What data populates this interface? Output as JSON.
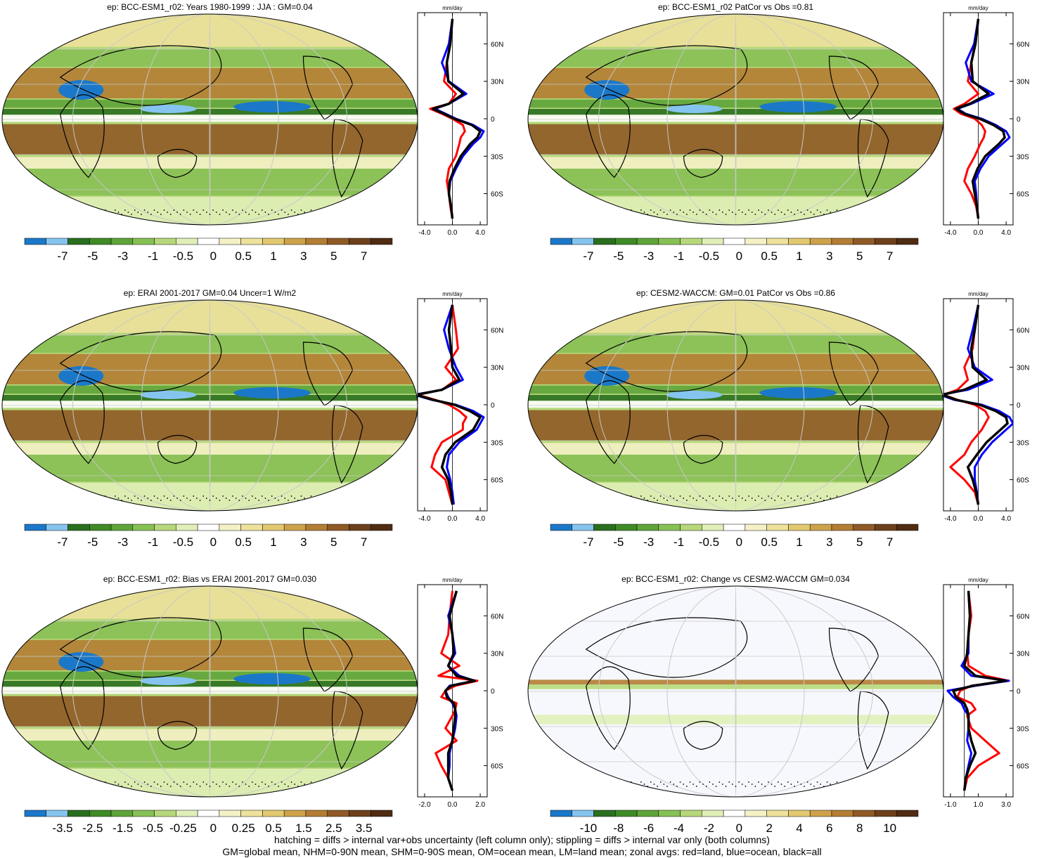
{
  "figure_notes": {
    "line1": "hatching = diffs > internal var+obs uncertainty (left column only); stippling = diffs > internal var only (both columns)",
    "line2": "GM=global mean, NHM=0-90N mean, SHM=0-90S mean, OM=ocean mean, LM=land mean; zonal avgs: red=land, blue=ocean, black=all"
  },
  "colors": {
    "land": "#ff0000",
    "ocean": "#0000ff",
    "all": "#000000",
    "palette": [
      "#1b78c8",
      "#86c4f0",
      "#2a6f1f",
      "#3f8b26",
      "#5ea43a",
      "#87c054",
      "#b6d87a",
      "#e0efb8",
      "#ffffff",
      "#f4f1c6",
      "#ede19b",
      "#e2c870",
      "#cda24a",
      "#b37d33",
      "#8f5a25",
      "#6d401b",
      "#4f2c12"
    ]
  },
  "chart_data": [
    {
      "type": "heatmap",
      "panel": "top-left",
      "title": "ep: BCC-ESM1_r02: Years 1980-1999 : JJA : GM=0.04",
      "colorbar_labels": [
        "-7",
        "-5",
        "-3",
        "-1",
        "-0.5",
        "0",
        "0.5",
        "1",
        "3",
        "5",
        "7"
      ],
      "zonal_mean": {
        "unit": "mm/day",
        "x_ticks": [
          "-4.0",
          "0.0",
          "4.0"
        ],
        "xlim": [
          -5,
          5
        ],
        "y_ticks": [
          "60N",
          "30N",
          "0",
          "30S",
          "60S"
        ],
        "lat": [
          80,
          60,
          45,
          30,
          20,
          12,
          8,
          4,
          0,
          -5,
          -10,
          -15,
          -20,
          -30,
          -40,
          -50,
          -60,
          -70,
          -80
        ],
        "series": [
          {
            "name": "land",
            "values": [
              0.0,
              -0.3,
              -0.8,
              -1.2,
              0.5,
              -0.5,
              -3.2,
              -1.5,
              0.0,
              1.5,
              1.8,
              1.2,
              1.0,
              0.5,
              -0.5,
              -0.8,
              -0.5,
              -0.3,
              0.0
            ]
          },
          {
            "name": "ocean",
            "values": [
              0.0,
              -0.5,
              -1.5,
              -0.5,
              2.0,
              -0.5,
              -2.5,
              -1.0,
              0.5,
              3.0,
              4.5,
              4.0,
              3.0,
              1.5,
              0.5,
              -0.3,
              -0.5,
              -0.2,
              0.0
            ]
          },
          {
            "name": "all",
            "values": [
              0.0,
              -0.3,
              -0.8,
              -0.6,
              1.6,
              -0.5,
              -2.8,
              -1.2,
              0.3,
              2.8,
              4.0,
              3.6,
              2.6,
              1.2,
              0.3,
              -0.4,
              -0.5,
              -0.2,
              0.0
            ]
          }
        ]
      }
    },
    {
      "type": "heatmap",
      "panel": "top-right",
      "title": "ep: BCC-ESM1_r02 PatCor vs Obs =0.81",
      "colorbar_labels": [
        "-7",
        "-5",
        "-3",
        "-1",
        "-0.5",
        "0",
        "0.5",
        "1",
        "3",
        "5",
        "7"
      ],
      "zonal_mean": {
        "unit": "mm/day",
        "x_ticks": [
          "-4.0",
          "0.0",
          "4.0"
        ],
        "xlim": [
          -5,
          5
        ],
        "y_ticks": [
          "60N",
          "30N",
          "0",
          "30S",
          "60S"
        ],
        "lat": [
          80,
          60,
          45,
          30,
          20,
          12,
          8,
          4,
          0,
          -5,
          -10,
          -15,
          -20,
          -30,
          -40,
          -50,
          -60,
          -70,
          -80
        ],
        "series": [
          {
            "name": "land",
            "values": [
              0.0,
              -0.5,
              -1.0,
              -1.5,
              0.0,
              -2.0,
              -3.5,
              -2.5,
              -0.5,
              0.5,
              1.0,
              0.8,
              0.3,
              -0.5,
              -1.5,
              -2.0,
              -1.0,
              -0.3,
              0.0
            ]
          },
          {
            "name": "ocean",
            "values": [
              0.0,
              -0.6,
              -1.8,
              -1.0,
              2.2,
              -1.0,
              -3.0,
              -1.8,
              0.5,
              2.5,
              4.0,
              4.5,
              3.5,
              1.5,
              0.3,
              -0.5,
              -0.3,
              -0.2,
              0.0
            ]
          },
          {
            "name": "all",
            "values": [
              0.0,
              -0.4,
              -1.0,
              -0.8,
              1.5,
              -1.2,
              -3.2,
              -2.0,
              0.2,
              2.2,
              3.6,
              3.8,
              3.0,
              1.0,
              -0.1,
              -0.8,
              -0.5,
              -0.2,
              0.0
            ]
          }
        ]
      }
    },
    {
      "type": "heatmap",
      "panel": "middle-left",
      "title": "ep: ERAI 2001-2017 GM=0.04 Uncer=1 W/m2",
      "colorbar_labels": [
        "-7",
        "-5",
        "-3",
        "-1",
        "-0.5",
        "0",
        "0.5",
        "1",
        "3",
        "5",
        "7"
      ],
      "zonal_mean": {
        "unit": "mm/day",
        "x_ticks": [
          "-4.0",
          "0.0",
          "4.0"
        ],
        "xlim": [
          -5,
          5
        ],
        "y_ticks": [
          "60N",
          "30N",
          "0",
          "30S",
          "60S"
        ],
        "lat": [
          80,
          60,
          45,
          30,
          20,
          12,
          8,
          4,
          0,
          -5,
          -10,
          -15,
          -20,
          -30,
          -40,
          -50,
          -60,
          -70,
          -80
        ],
        "series": [
          {
            "name": "land",
            "values": [
              0.0,
              0.5,
              0.8,
              -1.0,
              0.5,
              -1.5,
              -5.0,
              -2.5,
              -0.5,
              1.0,
              2.0,
              1.5,
              1.5,
              -1.5,
              -2.5,
              -3.0,
              -1.0,
              -0.5,
              0.0
            ]
          },
          {
            "name": "ocean",
            "values": [
              0.0,
              -1.2,
              -0.5,
              0.5,
              1.5,
              -1.5,
              -5.5,
              -3.0,
              0.5,
              3.0,
              4.5,
              4.0,
              3.5,
              1.0,
              -0.5,
              -0.8,
              -0.3,
              0.0,
              0.2
            ]
          },
          {
            "name": "all",
            "values": [
              0.0,
              -0.5,
              -0.2,
              0.0,
              1.0,
              -1.5,
              -5.2,
              -2.8,
              0.3,
              2.5,
              4.0,
              3.5,
              3.0,
              0.4,
              -1.0,
              -1.5,
              -0.6,
              -0.2,
              0.0
            ]
          }
        ]
      }
    },
    {
      "type": "heatmap",
      "panel": "middle-right",
      "title": "ep: CESM2-WACCM: GM=0.01 PatCor vs Obs =0.86",
      "colorbar_labels": [
        "-7",
        "-5",
        "-3",
        "-1",
        "-0.5",
        "0",
        "0.5",
        "1",
        "3",
        "5",
        "7"
      ],
      "zonal_mean": {
        "unit": "mm/day",
        "x_ticks": [
          "-4.0",
          "0.0",
          "4.0"
        ],
        "xlim": [
          -5,
          5
        ],
        "y_ticks": [
          "60N",
          "30N",
          "0",
          "30S",
          "60S"
        ],
        "lat": [
          80,
          60,
          45,
          30,
          20,
          12,
          8,
          4,
          0,
          -5,
          -10,
          -15,
          -20,
          -30,
          -40,
          -50,
          -60,
          -70,
          -80
        ],
        "series": [
          {
            "name": "land",
            "values": [
              0.0,
              -0.5,
              -0.8,
              -2.0,
              -1.5,
              -3.0,
              -5.0,
              -3.0,
              -0.5,
              1.0,
              1.5,
              1.0,
              0.5,
              -1.0,
              -2.0,
              -4.0,
              -2.0,
              -0.5,
              0.0
            ]
          },
          {
            "name": "ocean",
            "values": [
              0.0,
              -0.8,
              -1.5,
              -0.5,
              2.0,
              -1.5,
              -5.5,
              -3.5,
              0.5,
              3.0,
              4.5,
              5.0,
              4.0,
              2.0,
              0.5,
              -0.5,
              -0.5,
              -0.2,
              0.0
            ]
          },
          {
            "name": "all",
            "values": [
              0.0,
              -0.5,
              -1.0,
              -0.8,
              1.2,
              -2.0,
              -5.2,
              -3.2,
              0.2,
              2.5,
              4.0,
              4.2,
              3.2,
              1.2,
              -0.2,
              -1.5,
              -0.8,
              -0.3,
              0.0
            ]
          }
        ]
      }
    },
    {
      "type": "heatmap",
      "panel": "bottom-left",
      "title": "ep: BCC-ESM1_r02: Bias vs ERAI 2001-2017 GM=0.030",
      "colorbar_labels": [
        "-3.5",
        "-2.5",
        "-1.5",
        "-0.5",
        "-0.25",
        "0",
        "0.25",
        "0.5",
        "1.5",
        "2.5",
        "3.5"
      ],
      "zonal_mean": {
        "unit": "mm/day",
        "x_ticks": [
          "-2.0",
          "0.0",
          "2.0"
        ],
        "xlim": [
          -2.5,
          2.5
        ],
        "y_ticks": [
          "60N",
          "30N",
          "0",
          "30S",
          "60S"
        ],
        "lat": [
          80,
          60,
          45,
          30,
          20,
          12,
          8,
          4,
          0,
          -5,
          -10,
          -15,
          -20,
          -30,
          -40,
          -50,
          -60,
          -70,
          -80
        ],
        "series": [
          {
            "name": "land",
            "values": [
              0.0,
              -0.2,
              -0.3,
              -0.8,
              0.5,
              -1.0,
              1.8,
              0.2,
              -0.5,
              -0.8,
              0.3,
              0.2,
              0.0,
              -0.5,
              0.3,
              -1.2,
              -0.8,
              -0.3,
              0.0
            ]
          },
          {
            "name": "ocean",
            "values": [
              0.3,
              -0.3,
              0.0,
              0.2,
              -0.3,
              0.5,
              1.6,
              -0.2,
              -0.5,
              -0.3,
              0.0,
              0.2,
              0.3,
              0.2,
              0.0,
              -0.2,
              -0.2,
              -0.3,
              0.0
            ]
          },
          {
            "name": "all",
            "values": [
              0.3,
              -0.2,
              0.0,
              0.1,
              -0.3,
              0.3,
              1.6,
              -0.1,
              -0.5,
              -0.4,
              0.1,
              0.2,
              0.2,
              0.1,
              0.0,
              -0.3,
              -0.3,
              -0.3,
              0.0
            ]
          }
        ]
      }
    },
    {
      "type": "heatmap",
      "panel": "bottom-right",
      "title": "ep: BCC-ESM1_r02: Change vs CESM2-WACCM GM=0.034",
      "colorbar_labels": [
        "-10",
        "-8",
        "-6",
        "-4",
        "-2",
        "0",
        "2",
        "4",
        "6",
        "8",
        "10"
      ],
      "zonal_mean": {
        "unit": "mm/day",
        "x_ticks": [
          "-1.0",
          "1.0",
          "3.0"
        ],
        "xlim": [
          -1.5,
          3.5
        ],
        "y_ticks": [
          "60N",
          "30N",
          "0",
          "30S",
          "60S"
        ],
        "lat": [
          80,
          60,
          45,
          30,
          20,
          12,
          8,
          4,
          0,
          -5,
          -10,
          -15,
          -20,
          -30,
          -40,
          -50,
          -60,
          -70,
          -80
        ],
        "series": [
          {
            "name": "land",
            "values": [
              0.3,
              0.5,
              0.3,
              0.2,
              0.3,
              1.5,
              3.2,
              0.5,
              -0.3,
              -0.5,
              0.5,
              0.8,
              0.2,
              0.5,
              1.5,
              2.5,
              1.0,
              0.2,
              0.0
            ]
          },
          {
            "name": "ocean",
            "values": [
              0.3,
              0.4,
              0.3,
              0.3,
              -0.2,
              0.5,
              3.2,
              0.8,
              -1.2,
              -0.8,
              -0.2,
              0.0,
              0.3,
              0.3,
              0.2,
              0.5,
              0.3,
              0.1,
              0.0
            ]
          },
          {
            "name": "all",
            "values": [
              0.3,
              0.4,
              0.3,
              0.2,
              0.0,
              0.8,
              3.0,
              0.6,
              -0.8,
              -0.6,
              0.0,
              0.2,
              0.3,
              0.3,
              0.5,
              0.8,
              0.4,
              0.1,
              0.0
            ]
          }
        ]
      }
    }
  ]
}
